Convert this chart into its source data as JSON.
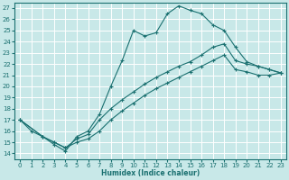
{
  "xlabel": "Humidex (Indice chaleur)",
  "bg_color": "#c8e8e8",
  "grid_color": "#ffffff",
  "line_color": "#1a7070",
  "xlim": [
    -0.5,
    23.5
  ],
  "ylim": [
    13.5,
    27.5
  ],
  "xticks": [
    0,
    1,
    2,
    3,
    4,
    5,
    6,
    7,
    8,
    9,
    10,
    11,
    12,
    13,
    14,
    15,
    16,
    17,
    18,
    19,
    20,
    21,
    22,
    23
  ],
  "yticks": [
    14,
    15,
    16,
    17,
    18,
    19,
    20,
    21,
    22,
    23,
    24,
    25,
    26,
    27
  ],
  "line1_x": [
    0,
    1,
    2,
    3,
    4,
    5,
    6,
    7,
    8,
    9,
    10,
    11,
    12,
    13,
    14,
    15,
    16,
    17,
    18,
    19,
    20,
    21,
    22,
    23
  ],
  "line1_y": [
    17.0,
    16.0,
    15.5,
    14.8,
    14.2,
    15.5,
    16.0,
    17.5,
    20.0,
    22.3,
    25.0,
    24.5,
    24.8,
    26.5,
    27.2,
    26.8,
    26.5,
    25.5,
    25.0,
    23.5,
    22.2,
    21.8,
    21.5,
    21.2
  ],
  "line2_x": [
    0,
    2,
    3,
    4,
    5,
    6,
    7,
    8,
    9,
    10,
    11,
    12,
    13,
    14,
    15,
    16,
    17,
    18,
    19,
    20,
    21,
    22,
    23
  ],
  "line2_y": [
    17.0,
    15.5,
    15.0,
    14.5,
    15.3,
    15.7,
    17.0,
    18.0,
    18.8,
    19.5,
    20.2,
    20.8,
    21.3,
    21.8,
    22.2,
    22.8,
    23.5,
    23.8,
    22.3,
    22.0,
    21.8,
    21.5,
    21.2
  ],
  "line3_x": [
    0,
    2,
    3,
    4,
    5,
    6,
    7,
    8,
    9,
    10,
    11,
    12,
    13,
    14,
    15,
    16,
    17,
    18,
    19,
    20,
    21,
    22,
    23
  ],
  "line3_y": [
    17.0,
    15.5,
    15.0,
    14.5,
    15.0,
    15.3,
    16.0,
    17.0,
    17.8,
    18.5,
    19.2,
    19.8,
    20.3,
    20.8,
    21.3,
    21.8,
    22.3,
    22.8,
    21.5,
    21.3,
    21.0,
    21.0,
    21.2
  ]
}
